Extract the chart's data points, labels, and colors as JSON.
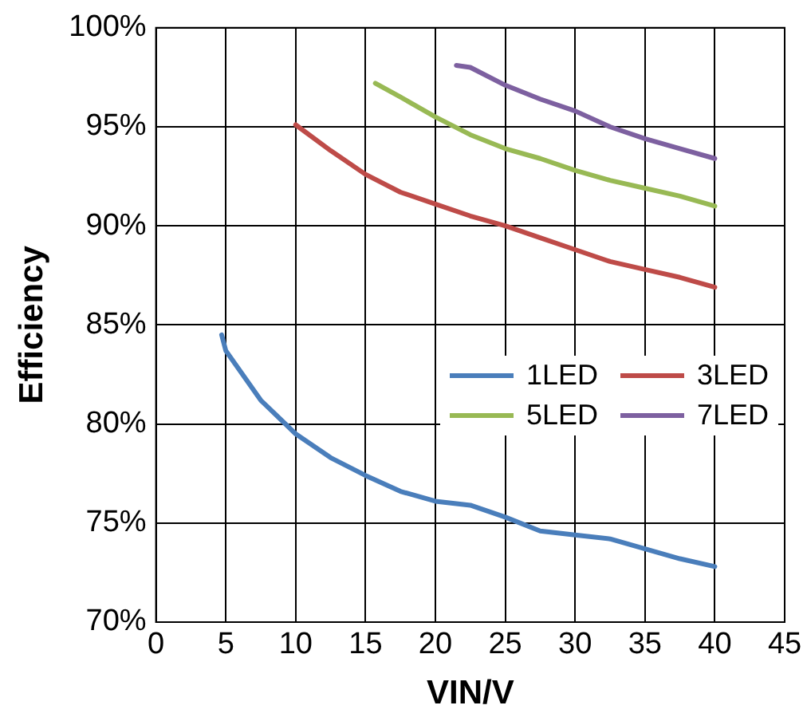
{
  "chart_data": {
    "type": "line",
    "xlabel": "VIN/V",
    "ylabel": "Efficiency",
    "xlim": [
      0,
      45
    ],
    "xticks": [
      0,
      5,
      10,
      15,
      20,
      25,
      30,
      35,
      40,
      45
    ],
    "ylim": [
      70,
      100
    ],
    "yticks": [
      {
        "value": 70,
        "label": "70%"
      },
      {
        "value": 75,
        "label": "75%"
      },
      {
        "value": 80,
        "label": "80%"
      },
      {
        "value": 85,
        "label": "85%"
      },
      {
        "value": 90,
        "label": "90%"
      },
      {
        "value": 95,
        "label": "95%"
      },
      {
        "value": 100,
        "label": "100%"
      }
    ],
    "grid": true,
    "legend": "right",
    "marker": "none",
    "line_style": "solid",
    "series": [
      {
        "name": "1LED",
        "color": "#4a7ebb",
        "x": [
          4.7,
          5,
          7.5,
          10,
          12.5,
          15,
          17.5,
          20,
          22.5,
          25,
          27.5,
          30,
          32.5,
          35,
          37.5,
          40
        ],
        "values": [
          84.5,
          83.7,
          81.2,
          79.5,
          78.3,
          77.4,
          76.6,
          76.1,
          75.9,
          75.3,
          74.6,
          74.4,
          74.2,
          73.7,
          73.2,
          72.8
        ]
      },
      {
        "name": "3LED",
        "color": "#be4b48",
        "x": [
          10,
          12.5,
          15,
          17.5,
          20,
          22.5,
          25,
          27.5,
          30,
          32.5,
          35,
          37.5,
          40
        ],
        "values": [
          95.1,
          93.8,
          92.6,
          91.7,
          91.1,
          90.5,
          90.0,
          89.4,
          88.8,
          88.2,
          87.8,
          87.4,
          86.9
        ]
      },
      {
        "name": "5LED",
        "color": "#98b954",
        "x": [
          15.7,
          17.5,
          20,
          22.5,
          25,
          27.5,
          30,
          32.5,
          35,
          37.5,
          40
        ],
        "values": [
          97.2,
          96.5,
          95.5,
          94.6,
          93.9,
          93.4,
          92.8,
          92.3,
          91.9,
          91.5,
          91.0
        ]
      },
      {
        "name": "7LED",
        "color": "#7d60a0",
        "x": [
          21.5,
          22.5,
          25,
          27.5,
          30,
          32.5,
          35,
          37.5,
          40
        ],
        "values": [
          98.1,
          98.0,
          97.1,
          96.4,
          95.8,
          95.0,
          94.4,
          93.9,
          93.4
        ]
      }
    ]
  }
}
